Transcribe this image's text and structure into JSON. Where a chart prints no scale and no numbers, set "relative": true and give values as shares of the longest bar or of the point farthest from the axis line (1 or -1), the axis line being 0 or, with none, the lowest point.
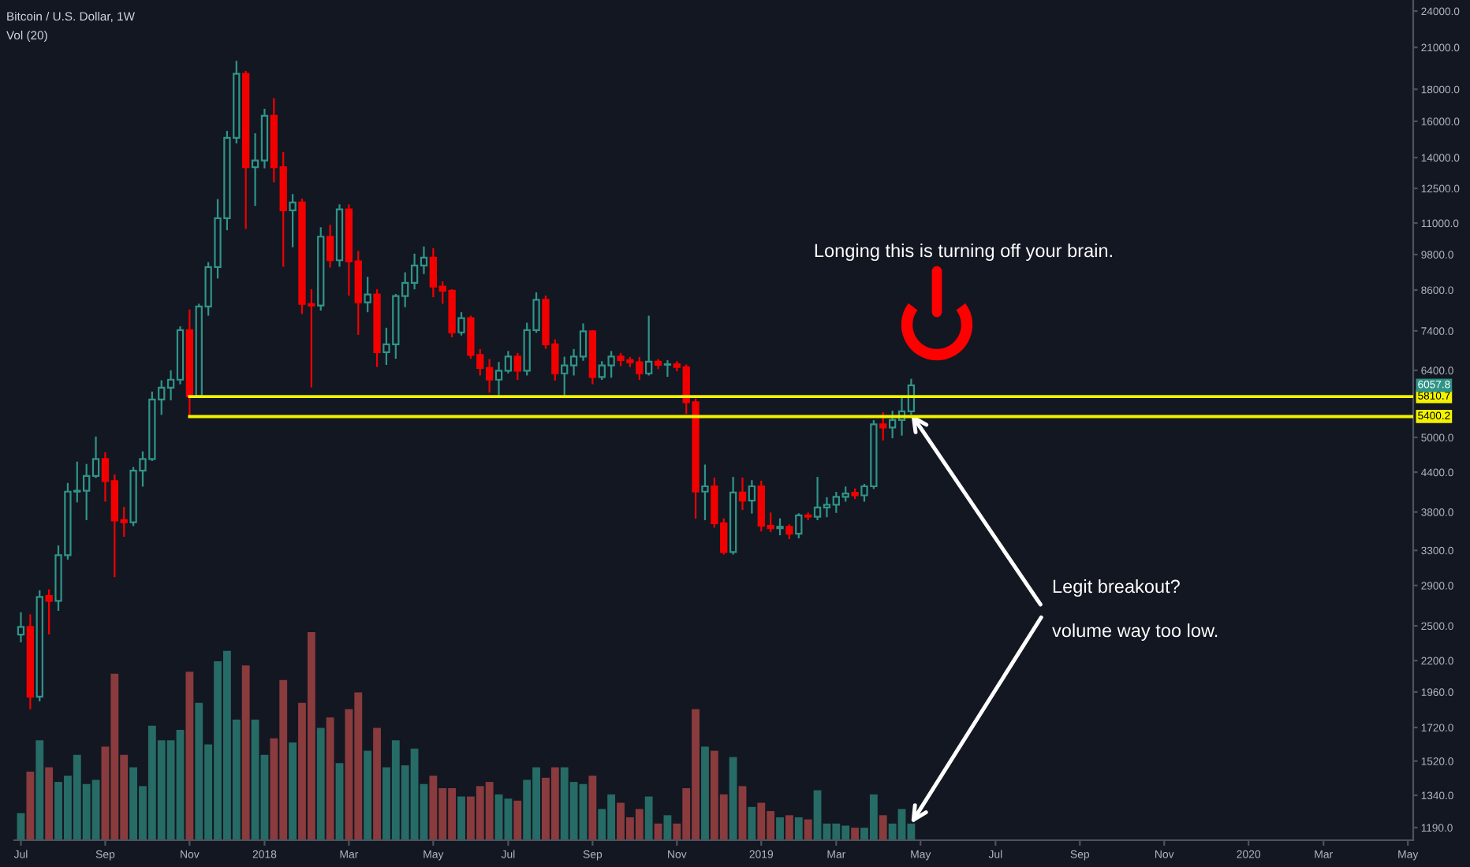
{
  "chart_data": [
    {
      "type": "candlestick",
      "title": "Bitcoin / U.S. Dollar, 1W",
      "x": [
        "2017-07-03",
        "2017-07-10",
        "2017-07-17",
        "2017-07-24",
        "2017-07-31",
        "2017-08-07",
        "2017-08-14",
        "2017-08-21",
        "2017-08-28",
        "2017-09-04",
        "2017-09-11",
        "2017-09-18",
        "2017-09-25",
        "2017-10-02",
        "2017-10-09",
        "2017-10-16",
        "2017-10-23",
        "2017-10-30",
        "2017-11-06",
        "2017-11-13",
        "2017-11-20",
        "2017-11-27",
        "2017-12-04",
        "2017-12-11",
        "2017-12-18",
        "2017-12-25",
        "2018-01-01",
        "2018-01-08",
        "2018-01-15",
        "2018-01-22",
        "2018-01-29",
        "2018-02-05",
        "2018-02-12",
        "2018-02-19",
        "2018-02-26",
        "2018-03-05",
        "2018-03-12",
        "2018-03-19",
        "2018-03-26",
        "2018-04-02",
        "2018-04-09",
        "2018-04-16",
        "2018-04-23",
        "2018-04-30",
        "2018-05-07",
        "2018-05-14",
        "2018-05-21",
        "2018-05-28",
        "2018-06-04",
        "2018-06-11",
        "2018-06-18",
        "2018-06-25",
        "2018-07-02",
        "2018-07-09",
        "2018-07-16",
        "2018-07-23",
        "2018-07-30",
        "2018-08-06",
        "2018-08-13",
        "2018-08-20",
        "2018-08-27",
        "2018-09-03",
        "2018-09-10",
        "2018-09-17",
        "2018-09-24",
        "2018-10-01",
        "2018-10-08",
        "2018-10-15",
        "2018-10-22",
        "2018-10-29",
        "2018-11-05",
        "2018-11-12",
        "2018-11-19",
        "2018-11-26",
        "2018-12-03",
        "2018-12-10",
        "2018-12-17",
        "2018-12-24",
        "2018-12-31",
        "2019-01-07",
        "2019-01-14",
        "2019-01-21",
        "2019-01-28",
        "2019-02-04",
        "2019-02-11",
        "2019-02-18",
        "2019-02-25",
        "2019-03-04",
        "2019-03-11",
        "2019-03-18",
        "2019-03-25",
        "2019-04-01",
        "2019-04-08",
        "2019-04-15",
        "2019-04-22",
        "2019-04-29"
      ],
      "ohlc": [
        [
          2420,
          2620,
          2360,
          2490
        ],
        [
          2490,
          2600,
          1845,
          1927
        ],
        [
          1927,
          2840,
          1900,
          2780
        ],
        [
          2790,
          2850,
          2430,
          2740
        ],
        [
          2740,
          3350,
          2650,
          3242
        ],
        [
          3242,
          4215,
          3200,
          4096
        ],
        [
          4096,
          4560,
          3950,
          4110
        ],
        [
          4110,
          4520,
          3700,
          4340
        ],
        [
          4340,
          5000,
          4320,
          4618
        ],
        [
          4618,
          4720,
          3960,
          4258
        ],
        [
          4258,
          4350,
          3000,
          3682
        ],
        [
          3690,
          3860,
          3480,
          3660
        ],
        [
          3660,
          4470,
          3620,
          4426
        ],
        [
          4426,
          4735,
          4185,
          4618
        ],
        [
          4618,
          5900,
          4600,
          5747
        ],
        [
          5747,
          6150,
          5450,
          6006
        ],
        [
          6006,
          6380,
          5750,
          6183
        ],
        [
          6183,
          7500,
          6100,
          7418
        ],
        [
          7418,
          7980,
          5400,
          5820
        ],
        [
          5820,
          8150,
          5800,
          8094
        ],
        [
          8094,
          9500,
          7850,
          9357
        ],
        [
          9357,
          11980,
          9000,
          11201
        ],
        [
          11201,
          15400,
          10750,
          15060
        ],
        [
          15060,
          19920,
          14800,
          19061
        ],
        [
          19061,
          19200,
          10800,
          13511
        ],
        [
          13511,
          15260,
          11760,
          13852
        ],
        [
          13852,
          16700,
          13500,
          16334
        ],
        [
          16334,
          17370,
          12820,
          13511
        ],
        [
          13511,
          14250,
          9400,
          11531
        ],
        [
          11531,
          12200,
          10100,
          11871
        ],
        [
          11871,
          12000,
          7900,
          8169
        ],
        [
          8169,
          8600,
          6030,
          8122
        ],
        [
          8122,
          10800,
          8000,
          10466
        ],
        [
          10466,
          10900,
          9370,
          9594
        ],
        [
          9594,
          11750,
          9400,
          11571
        ],
        [
          11571,
          11750,
          8450,
          9555
        ],
        [
          9555,
          9900,
          7316,
          8217
        ],
        [
          8217,
          9000,
          7950,
          8459
        ],
        [
          8459,
          8600,
          6500,
          6840
        ],
        [
          6840,
          7462,
          6550,
          7042
        ],
        [
          7042,
          8450,
          6700,
          8410
        ],
        [
          8410,
          9150,
          8100,
          8829
        ],
        [
          8829,
          9800,
          8650,
          9412
        ],
        [
          9412,
          10060,
          9150,
          9689
        ],
        [
          9689,
          10000,
          8400,
          8707
        ],
        [
          8707,
          8850,
          8200,
          8577
        ],
        [
          8577,
          8600,
          7250,
          7358
        ],
        [
          7358,
          7900,
          7300,
          7754
        ],
        [
          7754,
          7800,
          6700,
          6773
        ],
        [
          6773,
          6900,
          6300,
          6454
        ],
        [
          6454,
          6650,
          5916,
          6183
        ],
        [
          6183,
          6580,
          5800,
          6391
        ],
        [
          6391,
          6850,
          6350,
          6734
        ],
        [
          6734,
          6800,
          6200,
          6391
        ],
        [
          6391,
          7600,
          6300,
          7418
        ],
        [
          7418,
          8500,
          7370,
          8298
        ],
        [
          8298,
          8400,
          6950,
          7042
        ],
        [
          7042,
          7150,
          6183,
          6328
        ],
        [
          6328,
          6707,
          5850,
          6515
        ],
        [
          6515,
          6900,
          6300,
          6734
        ],
        [
          6734,
          7580,
          6650,
          7388
        ],
        [
          7388,
          7400,
          6100,
          6244
        ],
        [
          6244,
          6600,
          6200,
          6515
        ],
        [
          6515,
          6850,
          6250,
          6734
        ],
        [
          6734,
          6800,
          6520,
          6645
        ],
        [
          6645,
          6700,
          6500,
          6591
        ],
        [
          6591,
          6700,
          6200,
          6328
        ],
        [
          6328,
          7800,
          6300,
          6606
        ],
        [
          6606,
          6650,
          6450,
          6533
        ],
        [
          6533,
          6620,
          6270,
          6545
        ],
        [
          6545,
          6600,
          6400,
          6477
        ],
        [
          6477,
          6520,
          5470,
          5691
        ],
        [
          5691,
          5750,
          3720,
          4096
        ],
        [
          4096,
          4510,
          3700,
          4177
        ],
        [
          4177,
          4300,
          3600,
          3646
        ],
        [
          3646,
          3700,
          3260,
          3280
        ],
        [
          3280,
          4310,
          3260,
          4082
        ],
        [
          4082,
          4300,
          3840,
          3964
        ],
        [
          3964,
          4258,
          3790,
          4177
        ],
        [
          4177,
          4250,
          3550,
          3613
        ],
        [
          3613,
          3780,
          3540,
          3580
        ],
        [
          3580,
          3700,
          3500,
          3600
        ],
        [
          3600,
          3620,
          3450,
          3509
        ],
        [
          3509,
          3770,
          3460,
          3753
        ],
        [
          3753,
          3780,
          3700,
          3735
        ],
        [
          3735,
          4310,
          3700,
          3864
        ],
        [
          3864,
          4000,
          3740,
          3903
        ],
        [
          3903,
          4080,
          3800,
          4017
        ],
        [
          4017,
          4160,
          3960,
          4067
        ],
        [
          4080,
          4130,
          4000,
          4040
        ],
        [
          4040,
          4200,
          3960,
          4177
        ],
        [
          4177,
          5310,
          4150,
          5247
        ],
        [
          5247,
          5470,
          4960,
          5187
        ],
        [
          5187,
          5500,
          5000,
          5330
        ],
        [
          5330,
          5800,
          5050,
          5505
        ],
        [
          5505,
          6183,
          5450,
          6057.8
        ]
      ],
      "colors": [
        "#2f9488",
        "#f20000",
        "#2f9488",
        "#f20000",
        "#2f9488",
        "#2f9488",
        "#2f9488",
        "#2f9488",
        "#2f9488",
        "#f20000",
        "#f20000",
        "#f20000",
        "#2f9488",
        "#2f9488",
        "#2f9488",
        "#2f9488",
        "#2f9488",
        "#2f9488",
        "#f20000",
        "#2f9488",
        "#2f9488",
        "#2f9488",
        "#2f9488",
        "#2f9488",
        "#f20000",
        "#2f9488",
        "#2f9488",
        "#f20000",
        "#f20000",
        "#2f9488",
        "#f20000",
        "#f20000",
        "#2f9488",
        "#f20000",
        "#2f9488",
        "#f20000",
        "#f20000",
        "#2f9488",
        "#f20000",
        "#2f9488",
        "#2f9488",
        "#2f9488",
        "#2f9488",
        "#2f9488",
        "#f20000",
        "#f20000",
        "#f20000",
        "#2f9488",
        "#f20000",
        "#f20000",
        "#f20000",
        "#2f9488",
        "#2f9488",
        "#f20000",
        "#2f9488",
        "#2f9488",
        "#f20000",
        "#f20000",
        "#2f9488",
        "#2f9488",
        "#2f9488",
        "#f20000",
        "#2f9488",
        "#2f9488",
        "#f20000",
        "#f20000",
        "#f20000",
        "#2f9488",
        "#f20000",
        "#2f9488",
        "#f20000",
        "#f20000",
        "#f20000",
        "#2f9488",
        "#f20000",
        "#f20000",
        "#2f9488",
        "#f20000",
        "#2f9488",
        "#f20000",
        "#f20000",
        "#2f9488",
        "#f20000",
        "#2f9488",
        "#f20000",
        "#2f9488",
        "#2f9488",
        "#2f9488",
        "#2f9488",
        "#f20000",
        "#2f9488",
        "#2f9488",
        "#f20000",
        "#2f9488",
        "#2f9488",
        "#2f9488"
      ],
      "log": true,
      "xlim": [
        "2017-06-28",
        "2020-05-08"
      ],
      "ylim": [
        1136,
        25000
      ],
      "xticks": [
        {
          "value": "2017-07-03",
          "label": "Jul"
        },
        {
          "value": "2017-09-04",
          "label": "Sep"
        },
        {
          "value": "2017-11-06",
          "label": "Nov"
        },
        {
          "value": "2018-01-01",
          "label": "2018"
        },
        {
          "value": "2018-03-05",
          "label": "Mar"
        },
        {
          "value": "2018-05-07",
          "label": "May"
        },
        {
          "value": "2018-07-02",
          "label": "Jul"
        },
        {
          "value": "2018-09-03",
          "label": "Sep"
        },
        {
          "value": "2018-11-05",
          "label": "Nov"
        },
        {
          "value": "2019-01-07",
          "label": "2019"
        },
        {
          "value": "2019-03-04",
          "label": "Mar"
        },
        {
          "value": "2019-05-06",
          "label": "May"
        },
        {
          "value": "2019-07-01",
          "label": "Jul"
        },
        {
          "value": "2019-09-02",
          "label": "Sep"
        },
        {
          "value": "2019-11-04",
          "label": "Nov"
        },
        {
          "value": "2020-01-06",
          "label": "2020"
        },
        {
          "value": "2020-03-02",
          "label": "Mar"
        },
        {
          "value": "2020-05-04",
          "label": "May"
        }
      ],
      "yticks": [
        {
          "value": 24000,
          "label": "24000.0"
        },
        {
          "value": 21000,
          "label": "21000.0"
        },
        {
          "value": 18000,
          "label": "18000.0"
        },
        {
          "value": 16000,
          "label": "16000.0"
        },
        {
          "value": 14000,
          "label": "14000.0"
        },
        {
          "value": 12500,
          "label": "12500.0"
        },
        {
          "value": 11000,
          "label": "11000.0"
        },
        {
          "value": 9800,
          "label": "9800.0"
        },
        {
          "value": 8600,
          "label": "8600.0"
        },
        {
          "value": 7400,
          "label": "7400.0"
        },
        {
          "value": 6400,
          "label": "6400.0"
        },
        {
          "value": 5000,
          "label": "5000.0"
        },
        {
          "value": 4400,
          "label": "4400.0"
        },
        {
          "value": 3800,
          "label": "3800.0"
        },
        {
          "value": 3300,
          "label": "3300.0"
        },
        {
          "value": 2900,
          "label": "2900.0"
        },
        {
          "value": 2500,
          "label": "2500.0"
        },
        {
          "value": 2200,
          "label": "2200.0"
        },
        {
          "value": 1960,
          "label": "1960.0"
        },
        {
          "value": 1720,
          "label": "1720.0"
        },
        {
          "value": 1520,
          "label": "1520.0"
        },
        {
          "value": 1340,
          "label": "1340.0"
        },
        {
          "value": 1190,
          "label": "1190.0"
        }
      ],
      "series": [
        {
          "type": "line",
          "x": [
            "2017-11-06",
            "2020-05-08"
          ],
          "values": [
            5810.7,
            5810.7
          ],
          "color": "#f2f200",
          "value_labels": [
            null,
            "5810.7"
          ]
        },
        {
          "type": "line",
          "x": [
            "2017-11-06",
            "2020-05-08"
          ],
          "values": [
            5400.2,
            5400.2
          ],
          "color": "#f2f200",
          "value_labels": [
            null,
            "5400.2"
          ]
        }
      ],
      "annotations": [
        "Longing this is turning off your brain.",
        {
          "text": "Legit breakout?",
          "x": "2019-04-29",
          "y": 5450
        },
        {
          "text": "6057.8",
          "y": 6057.8
        }
      ]
    },
    {
      "type": "bar",
      "title": "Vol (20)",
      "relative": true,
      "tick_labels": false,
      "xlim": [
        "2017-06-28",
        "2020-05-08"
      ],
      "x": [
        "2017-07-03",
        "2017-07-10",
        "2017-07-17",
        "2017-07-24",
        "2017-07-31",
        "2017-08-07",
        "2017-08-14",
        "2017-08-21",
        "2017-08-28",
        "2017-09-04",
        "2017-09-11",
        "2017-09-18",
        "2017-09-25",
        "2017-10-02",
        "2017-10-09",
        "2017-10-16",
        "2017-10-23",
        "2017-10-30",
        "2017-11-06",
        "2017-11-13",
        "2017-11-20",
        "2017-11-27",
        "2017-12-04",
        "2017-12-11",
        "2017-12-18",
        "2017-12-25",
        "2018-01-01",
        "2018-01-08",
        "2018-01-15",
        "2018-01-22",
        "2018-01-29",
        "2018-02-05",
        "2018-02-12",
        "2018-02-19",
        "2018-02-26",
        "2018-03-05",
        "2018-03-12",
        "2018-03-19",
        "2018-03-26",
        "2018-04-02",
        "2018-04-09",
        "2018-04-16",
        "2018-04-23",
        "2018-04-30",
        "2018-05-07",
        "2018-05-14",
        "2018-05-21",
        "2018-05-28",
        "2018-06-04",
        "2018-06-11",
        "2018-06-18",
        "2018-06-25",
        "2018-07-02",
        "2018-07-09",
        "2018-07-16",
        "2018-07-23",
        "2018-07-30",
        "2018-08-06",
        "2018-08-13",
        "2018-08-20",
        "2018-08-27",
        "2018-09-03",
        "2018-09-10",
        "2018-09-17",
        "2018-09-24",
        "2018-10-01",
        "2018-10-08",
        "2018-10-15",
        "2018-10-22",
        "2018-10-29",
        "2018-11-05",
        "2018-11-12",
        "2018-11-19",
        "2018-11-26",
        "2018-12-03",
        "2018-12-10",
        "2018-12-17",
        "2018-12-24",
        "2018-12-31",
        "2019-01-07",
        "2019-01-14",
        "2019-01-21",
        "2019-01-28",
        "2019-02-04",
        "2019-02-11",
        "2019-02-18",
        "2019-02-25",
        "2019-03-04",
        "2019-03-11",
        "2019-03-18",
        "2019-03-25",
        "2019-04-01",
        "2019-04-08",
        "2019-04-15",
        "2019-04-22",
        "2019-04-29"
      ],
      "values": [
        0.13,
        0.33,
        0.48,
        0.35,
        0.28,
        0.31,
        0.41,
        0.27,
        0.29,
        0.45,
        0.8,
        0.41,
        0.35,
        0.26,
        0.55,
        0.48,
        0.48,
        0.53,
        0.81,
        0.66,
        0.46,
        0.86,
        0.91,
        0.58,
        0.84,
        0.58,
        0.41,
        0.49,
        0.77,
        0.47,
        0.66,
        1,
        0.54,
        0.59,
        0.37,
        0.63,
        0.71,
        0.43,
        0.54,
        0.35,
        0.48,
        0.36,
        0.44,
        0.27,
        0.31,
        0.25,
        0.25,
        0.21,
        0.21,
        0.26,
        0.28,
        0.22,
        0.2,
        0.19,
        0.29,
        0.35,
        0.3,
        0.35,
        0.35,
        0.28,
        0.27,
        0.31,
        0.15,
        0.22,
        0.18,
        0.11,
        0.15,
        0.21,
        0.08,
        0.12,
        0.08,
        0.25,
        0.63,
        0.45,
        0.43,
        0.22,
        0.4,
        0.26,
        0.16,
        0.18,
        0.14,
        0.11,
        0.12,
        0.11,
        0.1,
        0.24,
        0.08,
        0.08,
        0.07,
        0.06,
        0.06,
        0.22,
        0.12,
        0.08,
        0.15,
        0.08
      ],
      "colors": [
        "#276b66",
        "#8a3b3d",
        "#276b66",
        "#8a3b3d",
        "#276b66",
        "#276b66",
        "#276b66",
        "#276b66",
        "#276b66",
        "#8a3b3d",
        "#8a3b3d",
        "#8a3b3d",
        "#276b66",
        "#276b66",
        "#276b66",
        "#276b66",
        "#276b66",
        "#276b66",
        "#8a3b3d",
        "#276b66",
        "#276b66",
        "#276b66",
        "#276b66",
        "#276b66",
        "#8a3b3d",
        "#276b66",
        "#276b66",
        "#8a3b3d",
        "#8a3b3d",
        "#276b66",
        "#8a3b3d",
        "#8a3b3d",
        "#276b66",
        "#8a3b3d",
        "#276b66",
        "#8a3b3d",
        "#8a3b3d",
        "#276b66",
        "#8a3b3d",
        "#276b66",
        "#276b66",
        "#276b66",
        "#276b66",
        "#276b66",
        "#8a3b3d",
        "#8a3b3d",
        "#8a3b3d",
        "#276b66",
        "#8a3b3d",
        "#8a3b3d",
        "#8a3b3d",
        "#276b66",
        "#276b66",
        "#8a3b3d",
        "#276b66",
        "#276b66",
        "#8a3b3d",
        "#8a3b3d",
        "#276b66",
        "#276b66",
        "#276b66",
        "#8a3b3d",
        "#276b66",
        "#276b66",
        "#8a3b3d",
        "#8a3b3d",
        "#8a3b3d",
        "#276b66",
        "#8a3b3d",
        "#276b66",
        "#8a3b3d",
        "#8a3b3d",
        "#8a3b3d",
        "#276b66",
        "#8a3b3d",
        "#8a3b3d",
        "#276b66",
        "#8a3b3d",
        "#276b66",
        "#8a3b3d",
        "#8a3b3d",
        "#276b66",
        "#8a3b3d",
        "#276b66",
        "#8a3b3d",
        "#276b66",
        "#276b66",
        "#276b66",
        "#276b66",
        "#8a3b3d",
        "#276b66",
        "#276b66",
        "#8a3b3d",
        "#276b66",
        "#276b66",
        "#276b66"
      ],
      "annotations": [
        {
          "text": "volume way too low.",
          "x": "2019-04-29",
          "y": 0.08
        }
      ]
    }
  ]
}
